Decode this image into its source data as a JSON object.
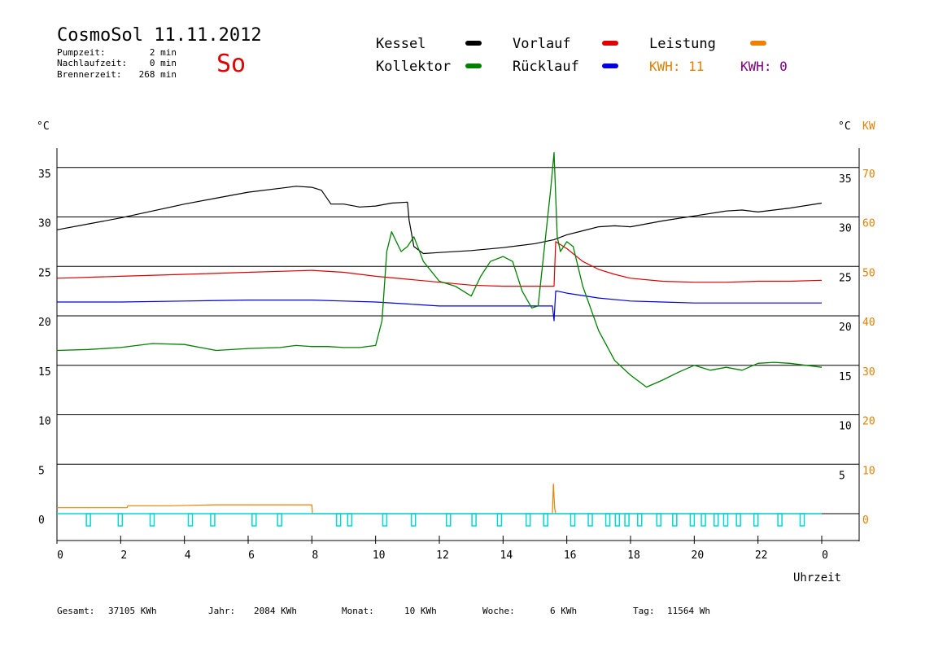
{
  "header": {
    "title": "CosmoSol 11.11.2012",
    "day": "So",
    "stats": [
      {
        "label": "Pumpzeit:",
        "value": "2 min"
      },
      {
        "label": "Nachlaufzeit:",
        "value": "0 min"
      },
      {
        "label": "Brennerzeit:",
        "value": "268 min"
      }
    ]
  },
  "legend": {
    "items": [
      {
        "label": "Kessel",
        "color": "#000000"
      },
      {
        "label": "Kollektor",
        "color": "#008000"
      },
      {
        "label": "Vorlauf",
        "color": "#e00000"
      },
      {
        "label": "Rücklauf",
        "color": "#0000e0"
      },
      {
        "label": "Leistung",
        "color": "#f08000"
      }
    ],
    "kwh_orange": "KWH: 11",
    "kwh_purple": "KWH: 0",
    "kwh_orange_color": "#e08000",
    "kwh_purple_color": "#800080"
  },
  "axes": {
    "left_unit": "°C",
    "right_unit": "°C",
    "right_unit2": "KW",
    "xlabel": "Uhrzeit",
    "x_ticks": [
      "0",
      "2",
      "4",
      "6",
      "8",
      "10",
      "12",
      "14",
      "16",
      "18",
      "20",
      "22",
      "0"
    ],
    "y_ticks_left": [
      "0",
      "5",
      "10",
      "15",
      "20",
      "25",
      "30",
      "35"
    ],
    "y_ticks_right": [
      "5",
      "10",
      "15",
      "20",
      "25",
      "30",
      "35"
    ],
    "kw_ticks": [
      "0",
      "10",
      "20",
      "30",
      "40",
      "50",
      "60",
      "70"
    ]
  },
  "footer": [
    {
      "label": "Gesamt:",
      "value": "37105 KWh"
    },
    {
      "label": "Jahr:",
      "value": "2084 KWh"
    },
    {
      "label": "Monat:",
      "value": "10 KWh"
    },
    {
      "label": "Woche:",
      "value": "6 KWh"
    },
    {
      "label": "Tag:",
      "value": "11564 Wh"
    }
  ],
  "chart_data": {
    "type": "line",
    "title": "CosmoSol 11.11.2012",
    "xlabel": "Uhrzeit",
    "ylabel": "°C",
    "y2label": "KW",
    "xlim": [
      0,
      24
    ],
    "ylim": [
      -3,
      37
    ],
    "y2lim": [
      -6,
      74
    ],
    "grid": true,
    "series": [
      {
        "name": "Kessel",
        "color": "#000000",
        "x": [
          0,
          1,
          2,
          3,
          4,
          5,
          6,
          7,
          7.5,
          8,
          8.3,
          8.6,
          9,
          9.5,
          10,
          10.5,
          11,
          11.05,
          11.2,
          11.5,
          12,
          13,
          14,
          15,
          15.6,
          16,
          16.5,
          17,
          17.5,
          18,
          19,
          20,
          21,
          21.5,
          22,
          23,
          24
        ],
        "y": [
          28.7,
          29.3,
          29.9,
          30.6,
          31.3,
          31.9,
          32.5,
          32.9,
          33.1,
          33.0,
          32.7,
          31.3,
          31.3,
          31.0,
          31.1,
          31.4,
          31.5,
          29.7,
          27.0,
          26.3,
          26.4,
          26.6,
          26.9,
          27.3,
          27.7,
          28.2,
          28.6,
          29.0,
          29.1,
          29.0,
          29.6,
          30.1,
          30.6,
          30.7,
          30.5,
          30.9,
          31.4
        ]
      },
      {
        "name": "Kollektor",
        "color": "#008000",
        "x": [
          0,
          1,
          2,
          3,
          4,
          5,
          6,
          7,
          7.5,
          8,
          8.5,
          9,
          9.5,
          10,
          10.2,
          10.35,
          10.5,
          10.8,
          11,
          11.2,
          11.5,
          12,
          12.5,
          13,
          13.3,
          13.6,
          14,
          14.3,
          14.6,
          14.9,
          15.1,
          15.3,
          15.5,
          15.6,
          15.7,
          15.8,
          16,
          16.2,
          16.5,
          17,
          17.5,
          18,
          18.5,
          19,
          19.5,
          20,
          20.5,
          21,
          21.5,
          22,
          22.5,
          23,
          24
        ],
        "y": [
          16.5,
          16.6,
          16.8,
          17.2,
          17.1,
          16.5,
          16.7,
          16.8,
          17.0,
          16.9,
          16.9,
          16.8,
          16.8,
          17.0,
          19.5,
          26.5,
          28.5,
          26.5,
          27.0,
          28.0,
          25.5,
          23.5,
          23.0,
          22.0,
          24.0,
          25.5,
          26.0,
          25.5,
          22.5,
          20.8,
          21.0,
          27.0,
          33.0,
          36.5,
          28.0,
          26.5,
          27.5,
          27.0,
          23.0,
          18.5,
          15.5,
          14.0,
          12.8,
          13.5,
          14.3,
          15.0,
          14.5,
          14.8,
          14.5,
          15.2,
          15.3,
          15.2,
          14.8
        ]
      },
      {
        "name": "Vorlauf",
        "color": "#e00000",
        "x": [
          0,
          2,
          4,
          6,
          7,
          8,
          9,
          10,
          11,
          12,
          13,
          14,
          15,
          15.6,
          15.65,
          16,
          16.5,
          17,
          17.5,
          18,
          19,
          20,
          21,
          22,
          23,
          24
        ],
        "y": [
          23.8,
          24.0,
          24.2,
          24.4,
          24.5,
          24.6,
          24.4,
          24.0,
          23.7,
          23.4,
          23.1,
          23.0,
          23.0,
          23.0,
          27.5,
          26.8,
          25.5,
          24.7,
          24.2,
          23.8,
          23.5,
          23.4,
          23.4,
          23.5,
          23.5,
          23.6
        ]
      },
      {
        "name": "Rücklauf",
        "color": "#0000e0",
        "x": [
          0,
          2,
          4,
          6,
          8,
          9,
          10,
          11,
          12,
          13,
          14,
          15,
          15.55,
          15.6,
          15.65,
          15.7,
          16,
          17,
          18,
          19,
          20,
          21,
          22,
          23,
          24
        ],
        "y": [
          21.4,
          21.4,
          21.5,
          21.6,
          21.6,
          21.5,
          21.4,
          21.2,
          21.0,
          21.0,
          21.0,
          21.0,
          21.0,
          19.5,
          22.5,
          22.5,
          22.3,
          21.8,
          21.5,
          21.4,
          21.3,
          21.3,
          21.3,
          21.3,
          21.3
        ]
      },
      {
        "name": "Leistung",
        "color": "#f08000",
        "x": [
          0,
          2.2,
          2.22,
          3.5,
          5,
          8,
          8.02,
          15.55,
          15.58,
          15.62,
          15.65,
          24
        ],
        "y": [
          0.6,
          0.6,
          0.8,
          0.8,
          0.9,
          0.9,
          0,
          0,
          3.0,
          0.5,
          0,
          0
        ]
      }
    ],
    "pump_markers_x": [
      1.0,
      2.0,
      3.0,
      4.2,
      4.9,
      6.2,
      7.0,
      8.85,
      9.2,
      10.3,
      11.2,
      12.3,
      13.1,
      13.9,
      14.8,
      15.35,
      16.2,
      16.75,
      17.3,
      17.6,
      17.9,
      18.3,
      18.9,
      19.4,
      19.95,
      20.3,
      20.7,
      21.0,
      21.4,
      21.95,
      22.7,
      23.4
    ]
  }
}
